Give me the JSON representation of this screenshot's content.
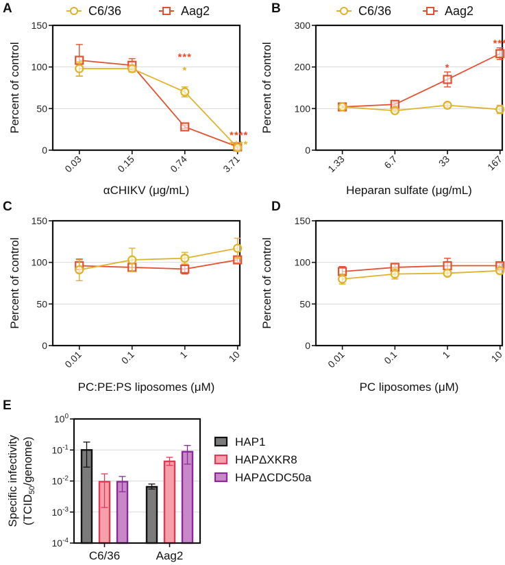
{
  "colors": {
    "c636": "#e0b22a",
    "aag2": "#e2502e",
    "hap1_fill": "#7b7b7b",
    "hap1_stroke": "#111111",
    "xkr8_fill": "#f5a0aa",
    "xkr8_stroke": "#e53755",
    "cdc50a_fill": "#c888c8",
    "cdc50a_stroke": "#8a2a9a",
    "grid": "#d9d9d9"
  },
  "chart_data": [
    {
      "panel": "A",
      "type": "line",
      "legend": [
        "C6/36",
        "Aag2"
      ],
      "legend_position": "top",
      "xlabel": "αCHIKV (μg/mL)",
      "ylabel": "Percent of control",
      "categories": [
        "0.03",
        "0.15",
        "0.74",
        "3.71"
      ],
      "ylim": [
        0,
        150
      ],
      "yticks": [
        0,
        50,
        100,
        150
      ],
      "grid": true,
      "series": [
        {
          "name": "C6/36",
          "values": [
            98,
            98,
            70,
            3
          ],
          "err_up": [
            8,
            3,
            6,
            2
          ],
          "err_down": [
            9,
            3,
            6,
            2
          ],
          "sig": [
            "",
            "",
            "*",
            "****"
          ]
        },
        {
          "name": "Aag2",
          "values": [
            108,
            102,
            28,
            4
          ],
          "err_up": [
            19,
            8,
            2,
            1
          ],
          "err_down": [
            19,
            8,
            2,
            1
          ],
          "sig": [
            "",
            "",
            "***",
            "****"
          ]
        }
      ]
    },
    {
      "panel": "B",
      "type": "line",
      "legend": [
        "C6/36",
        "Aag2"
      ],
      "legend_position": "top",
      "xlabel": "Heparan sulfate (μg/mL)",
      "ylabel": "Percent of control",
      "categories": [
        "1.33",
        "6.7",
        "33",
        "167"
      ],
      "ylim": [
        0,
        300
      ],
      "yticks": [
        0,
        100,
        200,
        300
      ],
      "grid": true,
      "series": [
        {
          "name": "C6/36",
          "values": [
            104,
            95,
            108,
            98
          ],
          "err_up": [
            3,
            3,
            5,
            10
          ],
          "err_down": [
            3,
            3,
            5,
            10
          ],
          "sig": [
            "",
            "",
            "",
            ""
          ]
        },
        {
          "name": "Aag2",
          "values": [
            104,
            110,
            170,
            232
          ],
          "err_up": [
            3,
            4,
            18,
            14
          ],
          "err_down": [
            3,
            4,
            18,
            14
          ],
          "sig": [
            "",
            "",
            "*",
            "***"
          ]
        }
      ]
    },
    {
      "panel": "C",
      "type": "line",
      "xlabel": "PC:PE:PS liposomes (μM)",
      "ylabel": "Percent of control",
      "categories": [
        "0.01",
        "0.1",
        "1",
        "10"
      ],
      "ylim": [
        0,
        150
      ],
      "yticks": [
        0,
        50,
        100,
        150
      ],
      "grid": true,
      "series": [
        {
          "name": "C6/36",
          "values": [
            91,
            103,
            105,
            117
          ],
          "err_up": [
            12,
            14,
            7,
            12
          ],
          "err_down": [
            13,
            14,
            7,
            12
          ]
        },
        {
          "name": "Aag2",
          "values": [
            96,
            94,
            92,
            103
          ],
          "err_up": [
            8,
            5,
            6,
            3
          ],
          "err_down": [
            8,
            5,
            6,
            3
          ]
        }
      ]
    },
    {
      "panel": "D",
      "type": "line",
      "xlabel": "PC liposomes (μM)",
      "ylabel": "Percent of control",
      "categories": [
        "0.01",
        "0.1",
        "1",
        "10"
      ],
      "ylim": [
        0,
        150
      ],
      "yticks": [
        0,
        50,
        100,
        150
      ],
      "grid": true,
      "series": [
        {
          "name": "C6/36",
          "values": [
            80,
            86,
            87,
            90
          ],
          "err_up": [
            6,
            6,
            3,
            3
          ],
          "err_down": [
            6,
            6,
            3,
            3
          ]
        },
        {
          "name": "Aag2",
          "values": [
            89,
            94,
            96,
            96
          ],
          "err_up": [
            6,
            4,
            9,
            3
          ],
          "err_down": [
            6,
            4,
            9,
            3
          ]
        }
      ]
    },
    {
      "panel": "E",
      "type": "bar",
      "scale": "log",
      "xlabel": "",
      "ylabel_line1": "Specific infectivity",
      "ylabel_line2_pre": "(TCID",
      "ylabel_line2_sub": "50",
      "ylabel_line2_post": "/genome)",
      "categories": [
        "C6/36",
        "Aag2"
      ],
      "ylim": [
        0.0001,
        1
      ],
      "yticks": [
        {
          "base": "10",
          "exp": "0"
        },
        {
          "base": "10",
          "exp": "-1"
        },
        {
          "base": "10",
          "exp": "-2"
        },
        {
          "base": "10",
          "exp": "-3"
        },
        {
          "base": "10",
          "exp": "-4"
        }
      ],
      "grid": true,
      "legend_position": "right",
      "series": [
        {
          "name": "HAP1",
          "values": [
            0.1,
            0.0065
          ],
          "err_up": [
            0.18,
            0.008
          ],
          "err_down": [
            0.028,
            0.0055
          ]
        },
        {
          "name": "HAPΔXKR8",
          "values": [
            0.0095,
            0.043
          ],
          "err_up": [
            0.017,
            0.058
          ],
          "err_down": [
            0.0014,
            0.032
          ]
        },
        {
          "name": "HAPΔCDC50a",
          "values": [
            0.0095,
            0.088
          ],
          "err_up": [
            0.014,
            0.14
          ],
          "err_down": [
            0.0045,
            0.035
          ]
        }
      ]
    }
  ]
}
